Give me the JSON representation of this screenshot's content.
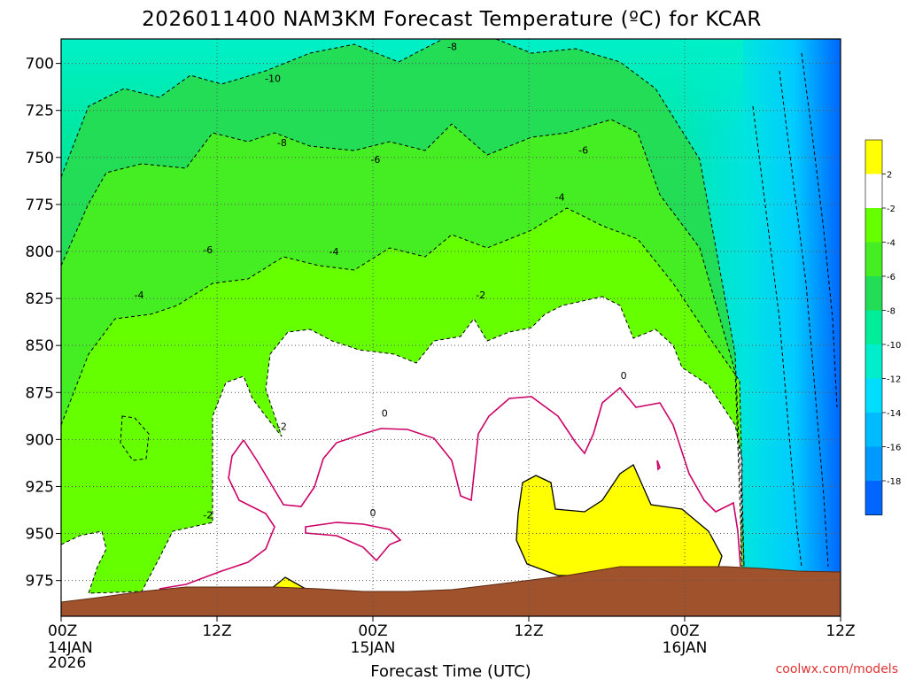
{
  "chart_data": {
    "type": "contour",
    "title": "2026011400 NAM3KM Forecast Temperature (ºC) for KCAR",
    "xlabel": "Forecast Time (UTC)",
    "ylabel": "",
    "x_ticks": [
      {
        "hour": 0,
        "label": "00Z",
        "sub": [
          "14JAN",
          "2026"
        ]
      },
      {
        "hour": 12,
        "label": "12Z",
        "sub": []
      },
      {
        "hour": 24,
        "label": "00Z",
        "sub": [
          "15JAN"
        ]
      },
      {
        "hour": 36,
        "label": "12Z",
        "sub": []
      },
      {
        "hour": 48,
        "label": "00Z",
        "sub": [
          "16JAN"
        ]
      },
      {
        "hour": 60,
        "label": "12Z",
        "sub": []
      }
    ],
    "xlim": [
      0,
      60
    ],
    "y_ticks": [
      700,
      725,
      750,
      775,
      800,
      825,
      850,
      875,
      900,
      925,
      950,
      975
    ],
    "ylim": [
      687,
      994
    ],
    "colorbar": {
      "labels": [
        "2",
        "-2",
        "-4",
        "-6",
        "-8",
        "-10",
        "-12",
        "-14",
        "-16",
        "-18"
      ],
      "colors": [
        "#ffff00",
        "#ffffff",
        "#66ff00",
        "#44ee22",
        "#22dd55",
        "#00ee99",
        "#00eecc",
        "#00ddff",
        "#00bbff",
        "#0099ff",
        "#0066ff"
      ]
    },
    "contour_labels": [
      {
        "text": "-8",
        "hour": 30.1,
        "p": 691
      },
      {
        "text": "-10",
        "hour": 16.3,
        "p": 708
      },
      {
        "text": "-8",
        "hour": 17.0,
        "p": 742
      },
      {
        "text": "-6",
        "hour": 24.2,
        "p": 751
      },
      {
        "text": "-6",
        "hour": 40.2,
        "p": 746
      },
      {
        "text": "-4",
        "hour": 38.4,
        "p": 771
      },
      {
        "text": "-6",
        "hour": 11.3,
        "p": 799
      },
      {
        "text": "-4",
        "hour": 21.0,
        "p": 800
      },
      {
        "text": "-4",
        "hour": 6.0,
        "p": 823
      },
      {
        "text": "-2",
        "hour": 32.3,
        "p": 823
      },
      {
        "text": "0",
        "hour": 43.3,
        "p": 866
      },
      {
        "text": "0",
        "hour": 24.9,
        "p": 886
      },
      {
        "text": "-2",
        "hour": 17.0,
        "p": 893
      },
      {
        "text": "0",
        "hour": 24.0,
        "p": 939
      },
      {
        "text": "-2",
        "hour": 11.3,
        "p": 940
      }
    ],
    "regions": [
      {
        "name": "below-2C",
        "color": "#ffffff",
        "level": -2
      },
      {
        "name": "above-0C",
        "color": "#ffff00",
        "level": 2
      },
      {
        "name": "terrain",
        "color": "#a0522d"
      }
    ],
    "grid": true
  },
  "watermark": "coolwx.com/models"
}
